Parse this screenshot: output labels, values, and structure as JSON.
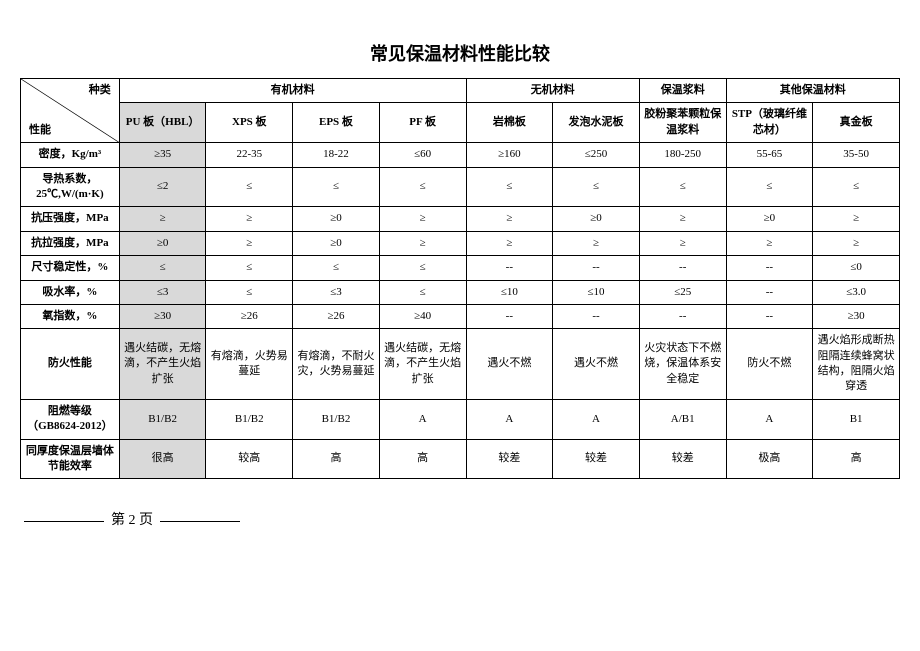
{
  "title": "常见保温材料性能比较",
  "diagHeader": {
    "top": "种类",
    "bottom": "性能"
  },
  "groupHeaders": [
    "有机材料",
    "无机材料",
    "保温浆料",
    "其他保温材料"
  ],
  "columns": [
    "PU 板（HBL）",
    "XPS 板",
    "EPS 板",
    "PF 板",
    "岩棉板",
    "发泡水泥板",
    "胶粉聚苯颗粒保温浆料",
    "STP（玻璃纤维芯材）",
    "真金板"
  ],
  "rows": [
    {
      "label": "密度，Kg/m³",
      "cells": [
        "≥35",
        "22-35",
        "18-22",
        "≤60",
        "≥160",
        "≤250",
        "180-250",
        "55-65",
        "35-50"
      ]
    },
    {
      "label": "导热系数，25℃,W/(m·K)",
      "cells": [
        "≤2",
        "≤",
        "≤",
        "≤",
        "≤",
        "≤",
        "≤",
        "≤",
        "≤"
      ]
    },
    {
      "label": "抗压强度，MPa",
      "cells": [
        "≥",
        "≥",
        "≥0",
        "≥",
        "≥",
        "≥0",
        "≥",
        "≥0",
        "≥"
      ]
    },
    {
      "label": "抗拉强度，MPa",
      "cells": [
        "≥0",
        "≥",
        "≥0",
        "≥",
        "≥",
        "≥",
        "≥",
        "≥",
        "≥"
      ]
    },
    {
      "label": "尺寸稳定性，%",
      "cells": [
        "≤",
        "≤",
        "≤",
        "≤",
        "--",
        "--",
        "--",
        "--",
        "≤0"
      ]
    },
    {
      "label": "吸水率，%",
      "cells": [
        "≤3",
        "≤",
        "≤3",
        "≤",
        "≤10",
        "≤10",
        "≤25",
        "--",
        "≤3.0"
      ]
    },
    {
      "label": "氧指数，%",
      "cells": [
        "≥30",
        "≥26",
        "≥26",
        "≥40",
        "--",
        "--",
        "--",
        "--",
        "≥30"
      ]
    },
    {
      "label": "防火性能",
      "cells": [
        "遇火结碳，无熔滴，不产生火焰扩张",
        "有熔滴，火势易蔓延",
        "有熔滴，不耐火灾，火势易蔓延",
        "遇火结碳，无熔滴，不产生火焰扩张",
        "遇火不燃",
        "遇火不燃",
        "火灾状态下不燃烧，保温体系安全稳定",
        "防火不燃",
        "遇火焰形成断热阻隔连续蜂窝状结构，阻隔火焰穿透"
      ]
    },
    {
      "label": "阻燃等级（GB8624-2012）",
      "cells": [
        "B1/B2",
        "B1/B2",
        "B1/B2",
        "A",
        "A",
        "A",
        "A/B1",
        "A",
        "B1"
      ]
    },
    {
      "label": "同厚度保温层墙体节能效率",
      "cells": [
        "很高",
        "较高",
        "高",
        "高",
        "较差",
        "较差",
        "较差",
        "极高",
        "高"
      ]
    }
  ],
  "pageNumber": "第 2 页"
}
